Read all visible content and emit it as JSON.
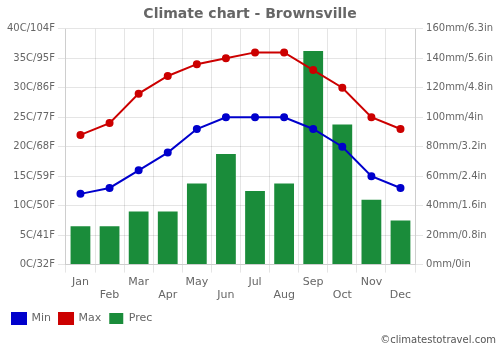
{
  "chart_data": {
    "type": "bar",
    "title": "Climate chart - Brownsville",
    "categories": [
      "Jan",
      "Feb",
      "Mar",
      "Apr",
      "May",
      "Jun",
      "Jul",
      "Aug",
      "Sep",
      "Oct",
      "Nov",
      "Dec"
    ],
    "series": [
      {
        "name": "Prec",
        "type": "bar",
        "axis": "y2",
        "color": "#1a8c3a",
        "values": [
          26,
          26,
          36,
          36,
          55,
          75,
          50,
          55,
          145,
          95,
          44,
          30
        ]
      },
      {
        "name": "Min",
        "type": "line",
        "color": "#0000cc",
        "marker": "circle",
        "line_style": "solid",
        "values": [
          12,
          13,
          16,
          19,
          23,
          25,
          25,
          25,
          23,
          20,
          15,
          13
        ]
      },
      {
        "name": "Max",
        "type": "line",
        "color": "#cc0000",
        "marker": "circle",
        "line_style": "solid",
        "values": [
          22,
          24,
          29,
          32,
          34,
          35,
          36,
          36,
          33,
          30,
          25,
          23
        ]
      }
    ],
    "ylim": [
      0,
      40
    ],
    "yticks": [
      {
        "value": 0,
        "label": "0C/32F"
      },
      {
        "value": 5,
        "label": "5C/41F"
      },
      {
        "value": 10,
        "label": "10C/50F"
      },
      {
        "value": 15,
        "label": "15C/59F"
      },
      {
        "value": 20,
        "label": "20C/68F"
      },
      {
        "value": 25,
        "label": "25C/77F"
      },
      {
        "value": 30,
        "label": "30C/86F"
      },
      {
        "value": 35,
        "label": "35C/95F"
      },
      {
        "value": 40,
        "label": "40C/104F"
      }
    ],
    "y2lim": [
      0,
      160
    ],
    "y2ticks": [
      {
        "value": 0,
        "label": "0mm/0in"
      },
      {
        "value": 20,
        "label": "20mm/0.8in"
      },
      {
        "value": 40,
        "label": "40mm/1.6in"
      },
      {
        "value": 60,
        "label": "60mm/2.4in"
      },
      {
        "value": 80,
        "label": "80mm/3.2in"
      },
      {
        "value": 100,
        "label": "100mm/4in"
      },
      {
        "value": 120,
        "label": "120mm/4.8in"
      },
      {
        "value": 140,
        "label": "140mm/5.6in"
      },
      {
        "value": 160,
        "label": "160mm/6.3in"
      }
    ],
    "grid": true,
    "legend": "lower left",
    "annotations": [
      "©climatestotravel.com"
    ]
  }
}
